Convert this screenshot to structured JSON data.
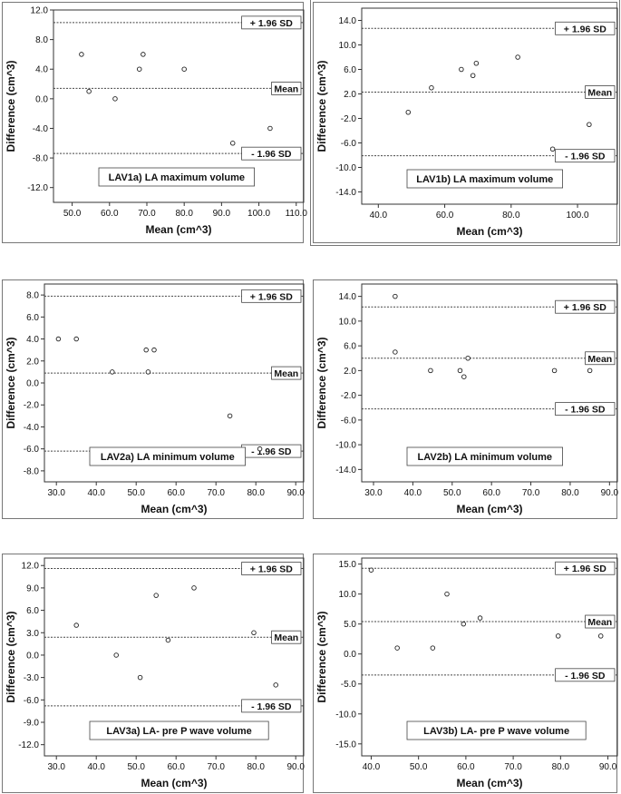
{
  "chart_data": [
    {
      "type": "scatter",
      "panel_label": "LAV1a) LA maximum volume",
      "xlabel": "Mean (cm^3)",
      "ylabel": "Difference (cm^3)",
      "xlim": [
        45,
        112
      ],
      "ylim": [
        -14,
        12
      ],
      "xticks": [
        "50.0",
        "60.0",
        "70.0",
        "80.0",
        "90.0",
        "100.0",
        "110.0"
      ],
      "yticks": [
        "12.0",
        "8.0",
        "4.0",
        "0.0",
        "-4.0",
        "-8.0",
        "-12.0"
      ],
      "points": [
        {
          "x": 52.5,
          "y": 6
        },
        {
          "x": 54.5,
          "y": 1
        },
        {
          "x": 61.5,
          "y": 0
        },
        {
          "x": 68,
          "y": 4
        },
        {
          "x": 69,
          "y": 6
        },
        {
          "x": 80,
          "y": 4
        },
        {
          "x": 93,
          "y": -6
        },
        {
          "x": 103,
          "y": -4
        }
      ],
      "lines": [
        {
          "label": "+ 1.96 SD",
          "y": 10.3
        },
        {
          "label": "Mean",
          "y": 1.4
        },
        {
          "label": "- 1.96 SD",
          "y": -7.4
        }
      ]
    },
    {
      "type": "scatter",
      "panel_label": "LAV1b) LA maximum volume",
      "xlabel": "Mean (cm^3)",
      "ylabel": "Difference (cm^3)",
      "xlim": [
        35,
        112
      ],
      "ylim": [
        -16,
        16
      ],
      "xticks": [
        "40.0",
        "60.0",
        "80.0",
        "100.0"
      ],
      "yticks": [
        "14.0",
        "10.0",
        "6.0",
        "2.0",
        "-2.0",
        "-6.0",
        "-10.0",
        "-14.0"
      ],
      "points": [
        {
          "x": 49,
          "y": -1
        },
        {
          "x": 56,
          "y": 3
        },
        {
          "x": 65,
          "y": 6
        },
        {
          "x": 68.5,
          "y": 5
        },
        {
          "x": 69.5,
          "y": 7
        },
        {
          "x": 82,
          "y": 8
        },
        {
          "x": 92.5,
          "y": -7
        },
        {
          "x": 103.5,
          "y": -3
        }
      ],
      "lines": [
        {
          "label": "+ 1.96 SD",
          "y": 12.7
        },
        {
          "label": "Mean",
          "y": 2.3
        },
        {
          "label": "- 1.96 SD",
          "y": -8.1
        }
      ]
    },
    {
      "type": "scatter",
      "panel_label": "LAV2a) LA minimum volume",
      "xlabel": "Mean (cm^3)",
      "ylabel": "Difference (cm^3)",
      "xlim": [
        27,
        92
      ],
      "ylim": [
        -9,
        9
      ],
      "xticks": [
        "30.0",
        "40.0",
        "50.0",
        "60.0",
        "70.0",
        "80.0",
        "90.0"
      ],
      "yticks": [
        "8.0",
        "6.0",
        "4.0",
        "2.0",
        "0.0",
        "-2.0",
        "-4.0",
        "-6.0",
        "-8.0"
      ],
      "points": [
        {
          "x": 30.5,
          "y": 4
        },
        {
          "x": 35,
          "y": 4
        },
        {
          "x": 44,
          "y": 1
        },
        {
          "x": 52.5,
          "y": 3
        },
        {
          "x": 53,
          "y": 1
        },
        {
          "x": 54.5,
          "y": 3
        },
        {
          "x": 73.5,
          "y": -3
        },
        {
          "x": 81,
          "y": -6
        }
      ],
      "lines": [
        {
          "label": "+ 1.96 SD",
          "y": 7.9
        },
        {
          "label": "Mean",
          "y": 0.9
        },
        {
          "label": "- 1.96 SD",
          "y": -6.2
        }
      ]
    },
    {
      "type": "scatter",
      "panel_label": "LAV2b) LA minimum volume",
      "xlabel": "Mean (cm^3)",
      "ylabel": "Difference (cm^3)",
      "xlim": [
        27,
        92
      ],
      "ylim": [
        -16,
        16
      ],
      "xticks": [
        "30.0",
        "40.0",
        "50.0",
        "60.0",
        "70.0",
        "80.0",
        "90.0"
      ],
      "yticks": [
        "14.0",
        "10.0",
        "6.0",
        "2.0",
        "-2.0",
        "-6.0",
        "-10.0",
        "-14.0"
      ],
      "points": [
        {
          "x": 35.5,
          "y": 14
        },
        {
          "x": 35.5,
          "y": 5
        },
        {
          "x": 44.5,
          "y": 2
        },
        {
          "x": 52,
          "y": 2
        },
        {
          "x": 53,
          "y": 1
        },
        {
          "x": 54,
          "y": 4
        },
        {
          "x": 76,
          "y": 2
        },
        {
          "x": 85,
          "y": 2
        }
      ],
      "lines": [
        {
          "label": "+ 1.96 SD",
          "y": 12.3
        },
        {
          "label": "Mean",
          "y": 4.0
        },
        {
          "label": "- 1.96 SD",
          "y": -4.2
        }
      ]
    },
    {
      "type": "scatter",
      "panel_label": "LAV3a) LA- pre P wave volume",
      "xlabel": "Mean (cm^3)",
      "ylabel": "Difference (cm^3)",
      "xlim": [
        27,
        92
      ],
      "ylim": [
        -13.5,
        13
      ],
      "xticks": [
        "30.0",
        "40.0",
        "50.0",
        "60.0",
        "70.0",
        "80.0",
        "90.0"
      ],
      "yticks": [
        "12.0",
        "9.0",
        "6.0",
        "3.0",
        "0.0",
        "-3.0",
        "-6.0",
        "-9.0",
        "-12.0"
      ],
      "points": [
        {
          "x": 35,
          "y": 4
        },
        {
          "x": 45,
          "y": 0
        },
        {
          "x": 51,
          "y": -3
        },
        {
          "x": 55,
          "y": 8
        },
        {
          "x": 58,
          "y": 2
        },
        {
          "x": 64.5,
          "y": 9
        },
        {
          "x": 79.5,
          "y": 3
        },
        {
          "x": 85,
          "y": -4
        }
      ],
      "lines": [
        {
          "label": "+ 1.96 SD",
          "y": 11.6
        },
        {
          "label": "Mean",
          "y": 2.4
        },
        {
          "label": "- 1.96 SD",
          "y": -6.8
        }
      ]
    },
    {
      "type": "scatter",
      "panel_label": "LAV3b) LA- pre P wave volume",
      "xlabel": "Mean (cm^3)",
      "ylabel": "Difference (cm^3)",
      "xlim": [
        38,
        92
      ],
      "ylim": [
        -17,
        16
      ],
      "xticks": [
        "40.0",
        "50.0",
        "60.0",
        "70.0",
        "80.0",
        "90.0"
      ],
      "yticks": [
        "15.0",
        "10.0",
        "5.0",
        "0.0",
        "-5.0",
        "-10.0",
        "-15.0"
      ],
      "points": [
        {
          "x": 40,
          "y": 14
        },
        {
          "x": 45.5,
          "y": 1
        },
        {
          "x": 53,
          "y": 1
        },
        {
          "x": 56,
          "y": 10
        },
        {
          "x": 59.5,
          "y": 5
        },
        {
          "x": 63,
          "y": 6
        },
        {
          "x": 79.5,
          "y": 3
        },
        {
          "x": 88.5,
          "y": 3
        }
      ],
      "lines": [
        {
          "label": "+ 1.96 SD",
          "y": 14.3
        },
        {
          "label": "Mean",
          "y": 5.4
        },
        {
          "label": "- 1.96 SD",
          "y": -3.5
        }
      ]
    }
  ]
}
